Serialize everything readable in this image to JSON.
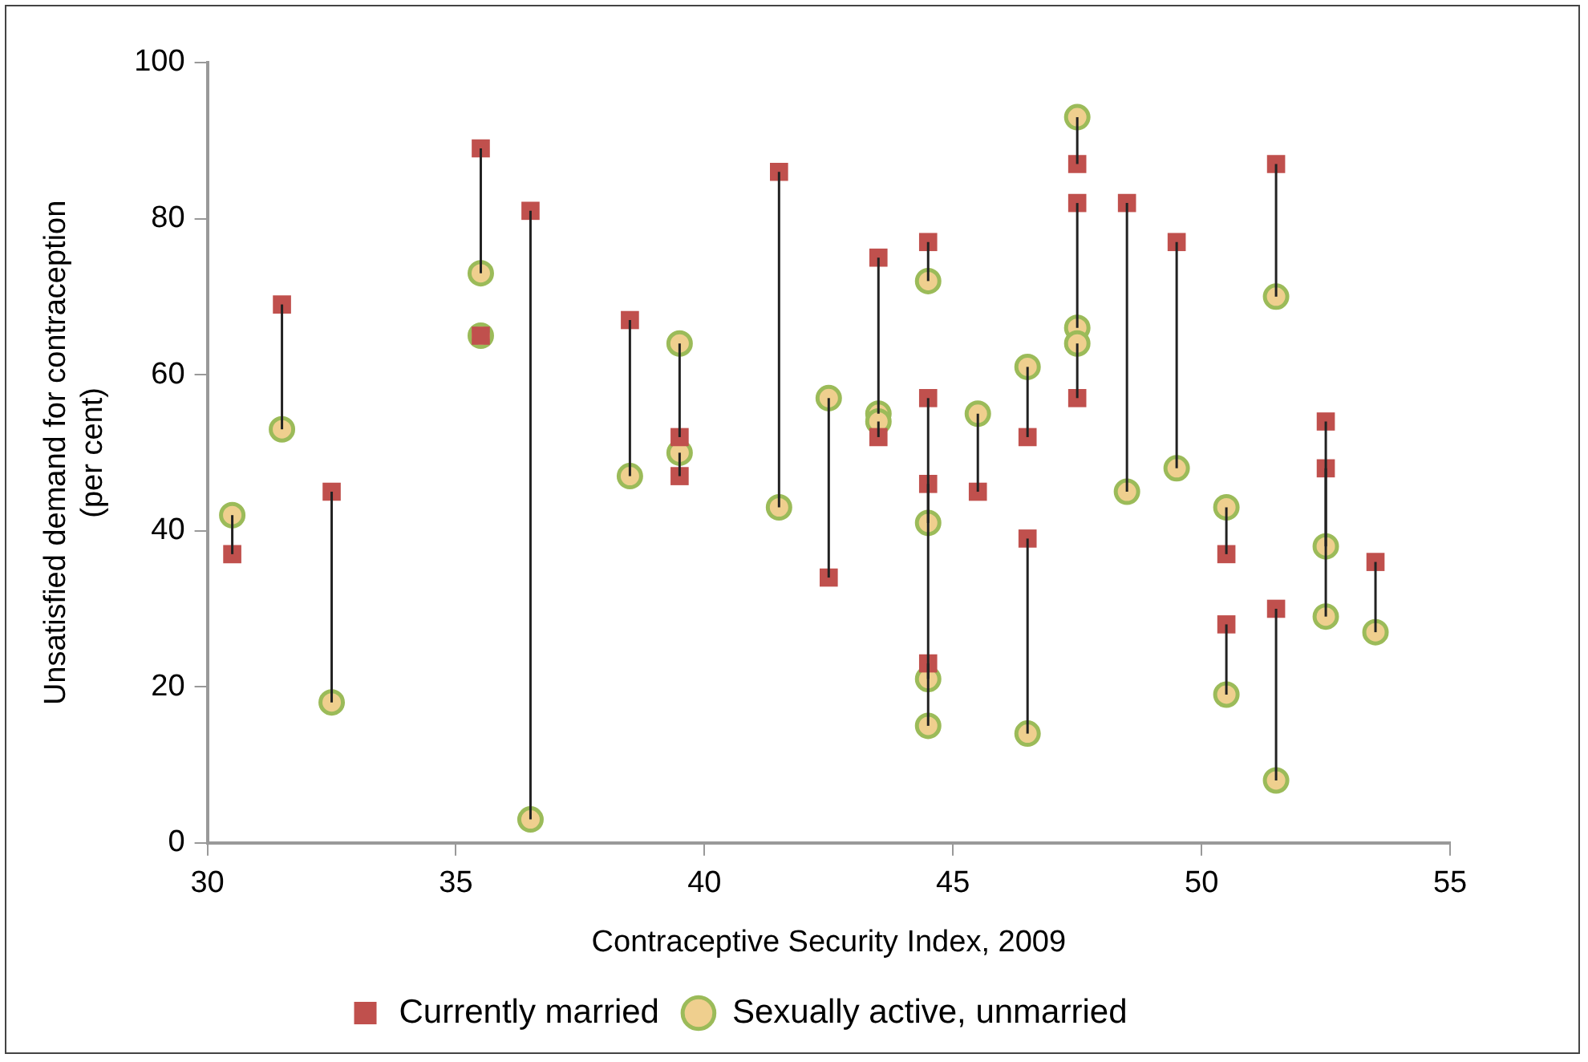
{
  "chart_data": {
    "type": "scatter",
    "xlabel": "Contraceptive Security Index, 2009",
    "ylabel": "Unsatisfied demand for contraception\n(per cent)",
    "x": [
      30.5,
      31.5,
      32.5,
      35.5,
      35.5,
      36.5,
      38.5,
      39.5,
      39.5,
      41.5,
      42.5,
      43.5,
      43.5,
      44.5,
      44.5,
      44.5,
      44.5,
      45.5,
      46.5,
      46.5,
      47.5,
      47.5,
      47.5,
      48.5,
      49.5,
      50.5,
      50.5,
      51.5,
      51.5,
      52.5,
      52.5,
      53.5
    ],
    "series": [
      {
        "name": "Currently married",
        "color": "#c0504d",
        "marker": "square",
        "values": [
          37,
          69,
          45,
          89,
          65,
          81,
          67,
          52,
          47,
          86,
          34,
          75,
          52,
          77,
          57,
          46,
          23,
          45,
          52,
          39,
          87,
          82,
          57,
          82,
          77,
          37,
          28,
          87,
          30,
          54,
          48,
          36
        ],
        "errors": [
          [
            37,
            42
          ],
          [
            53,
            69
          ],
          [
            18,
            45
          ],
          [
            73,
            89
          ],
          [
            65,
            65
          ],
          [
            3,
            81
          ],
          [
            47,
            67
          ],
          [
            52,
            64
          ],
          [
            47,
            50
          ],
          [
            43,
            86
          ],
          [
            34,
            57
          ],
          [
            55,
            75
          ],
          [
            52,
            54
          ],
          [
            72,
            77
          ],
          [
            41,
            57
          ],
          [
            21,
            46
          ],
          [
            15,
            23
          ],
          [
            45,
            55
          ],
          [
            52,
            61
          ],
          [
            14,
            39
          ],
          [
            87,
            93
          ],
          [
            66,
            82
          ],
          [
            57,
            64
          ],
          [
            45,
            82
          ],
          [
            48,
            77
          ],
          [
            37,
            43
          ],
          [
            19,
            28
          ],
          [
            70,
            87
          ],
          [
            8,
            30
          ],
          [
            38,
            54
          ],
          [
            29,
            48
          ],
          [
            27,
            36
          ]
        ]
      },
      {
        "name": "Sexually active, unmarried",
        "color": "#9bbb59",
        "marker": "circle",
        "values": [
          42,
          53,
          18,
          73,
          65,
          3,
          47,
          64,
          50,
          43,
          57,
          55,
          54,
          72,
          41,
          21,
          15,
          55,
          61,
          14,
          93,
          66,
          64,
          45,
          48,
          43,
          19,
          70,
          8,
          38,
          29,
          27
        ]
      }
    ],
    "xlim": [
      30,
      55
    ],
    "xticks": [
      30,
      35,
      40,
      45,
      50,
      55
    ],
    "ylim": [
      0,
      100
    ],
    "yticks": [
      0,
      20,
      40,
      60,
      80,
      100
    ],
    "grid": false,
    "legend": "bottom"
  }
}
